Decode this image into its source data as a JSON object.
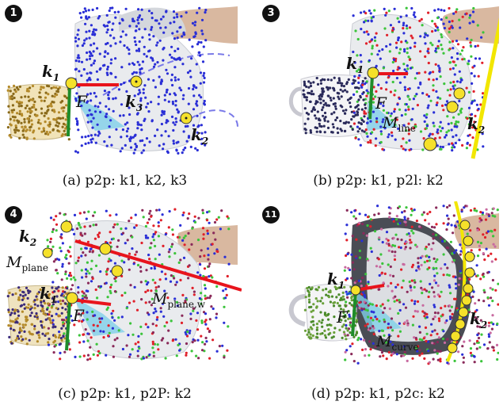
{
  "panels": [
    {
      "id": "a",
      "step_badge": "1",
      "caption": "(a) p2p: k1, k2, k3",
      "labels": {
        "k1": "k",
        "k1_sub": "1",
        "k2": "k",
        "k2_sub": "2",
        "k3": "k",
        "k3_sub": "3",
        "frame": "F"
      }
    },
    {
      "id": "b",
      "step_badge": "3",
      "caption": "(b) p2p: k1, p2l: k2",
      "labels": {
        "k1": "k",
        "k1_sub": "1",
        "k2": "k",
        "k2_sub": "2",
        "frame": "F",
        "manifold": "M",
        "manifold_sub": "line"
      }
    },
    {
      "id": "c",
      "step_badge": "4",
      "caption": "(c) p2p: k1, p2P: k2",
      "labels": {
        "k1": "k",
        "k1_sub": "1",
        "k2": "k",
        "k2_sub": "2",
        "frame": "F",
        "manifold": "M",
        "manifold_sub": "plane",
        "manifold2": "M",
        "manifold2_sub": "plane,w"
      }
    },
    {
      "id": "d",
      "step_badge": "11",
      "caption": "(d) p2p: k1, p2c: k2",
      "labels": {
        "k1": "k",
        "k1_sub": "1",
        "k2": "k",
        "k2_sub": "2",
        "frame": "F",
        "manifold": "M",
        "manifold_sub": "curve"
      }
    }
  ],
  "colors": {
    "points_blue": "#2a2fd6",
    "points_red": "#e0202a",
    "points_green": "#3bc43b",
    "keypoint_yellow": "#f5e12a",
    "axis_red": "#e8141c",
    "axis_green": "#1e8c2a",
    "axis_blue": "#1a4fd8",
    "manifold_yellow": "#f2e600",
    "trajectory_dash": "#7a7ae8"
  }
}
